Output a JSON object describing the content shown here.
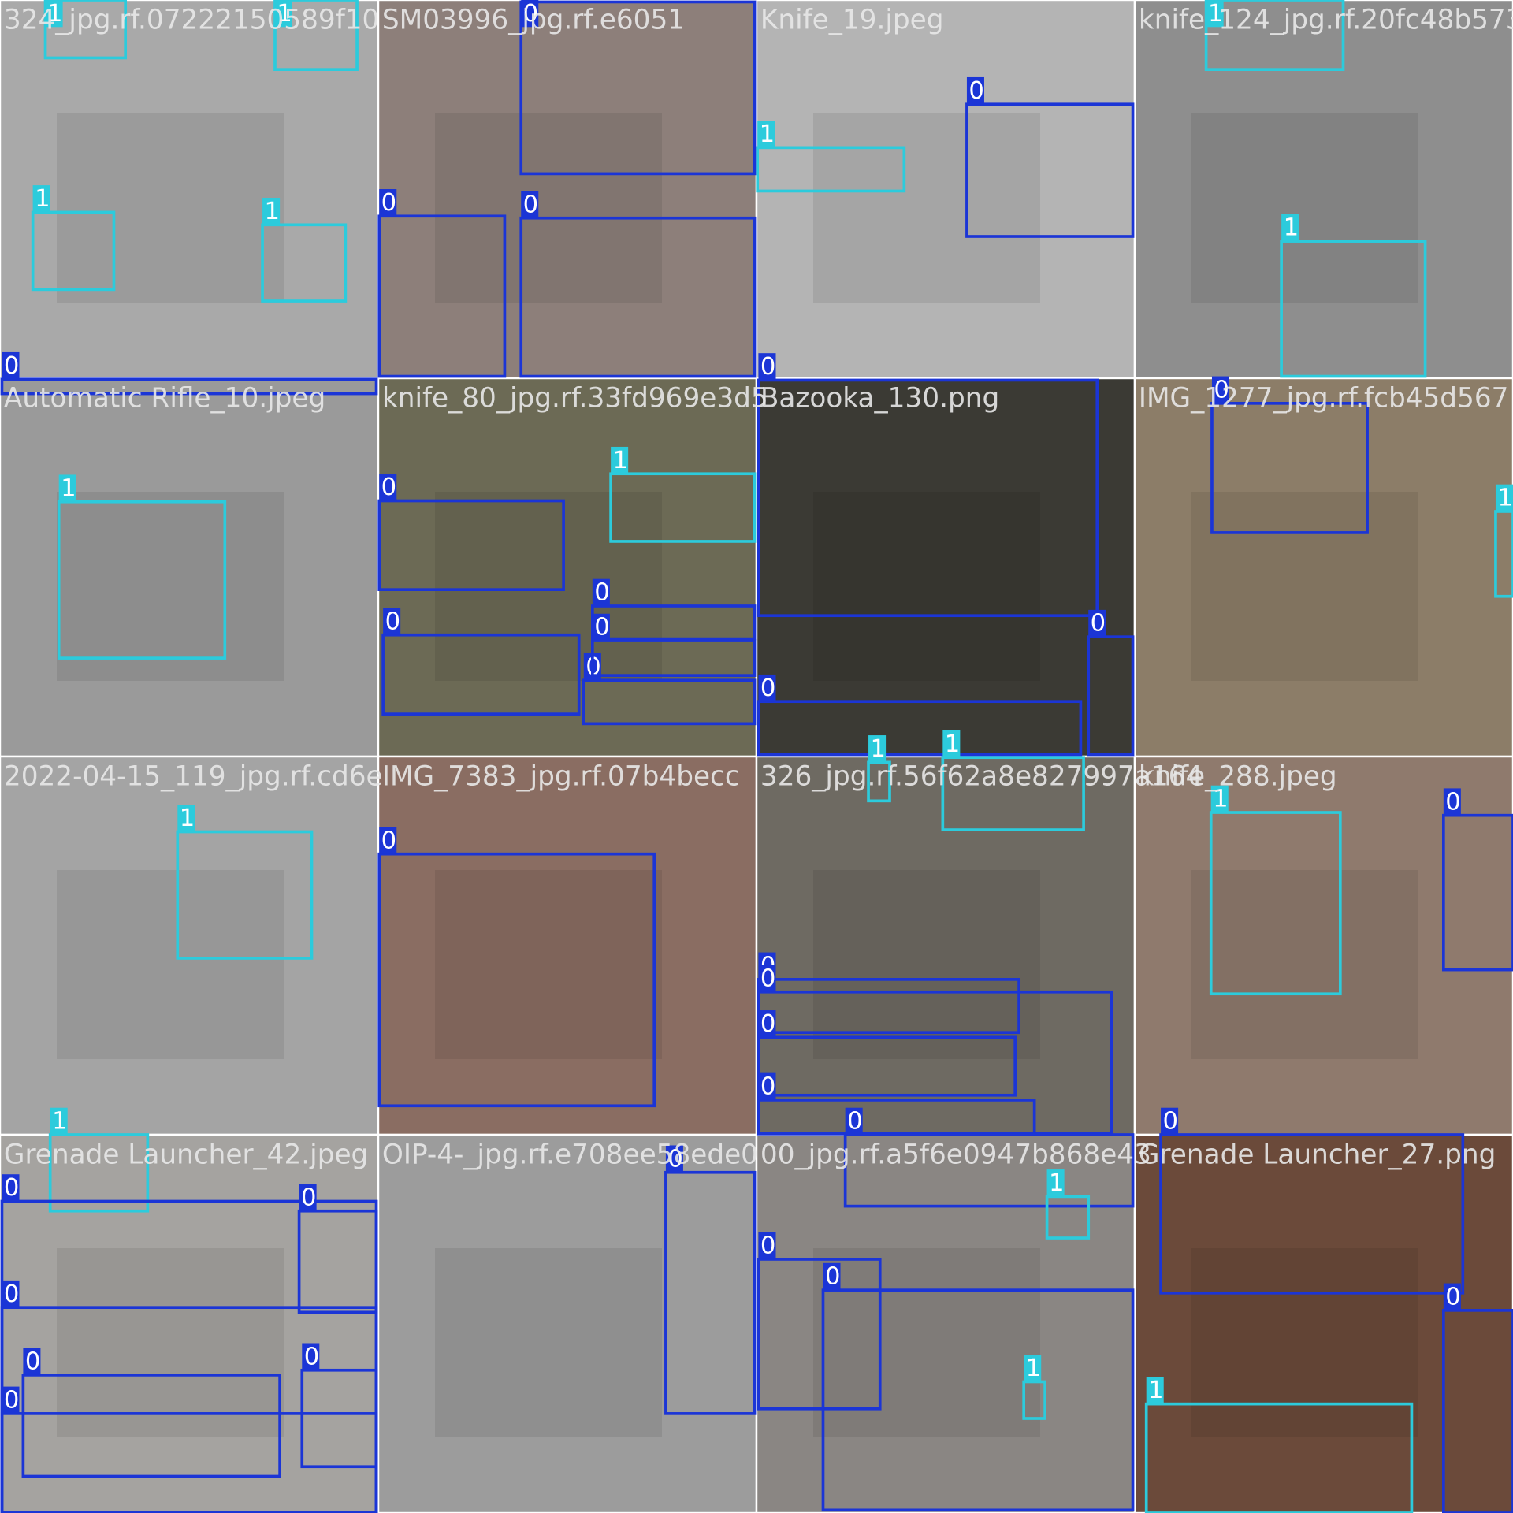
{
  "tiles": [
    {
      "filename": "324_jpg.rf.07222150589f10",
      "boxes": [
        {
          "label": "1"
        },
        {
          "label": "1"
        },
        {
          "label": "1"
        },
        {
          "label": "1"
        },
        {
          "label": "0"
        }
      ]
    },
    {
      "filename": "SM03996_jpg.rf.e6051",
      "boxes": [
        {
          "label": "0"
        },
        {
          "label": "0"
        },
        {
          "label": "0"
        }
      ]
    },
    {
      "filename": "Knife_19.jpeg",
      "boxes": [
        {
          "label": "1"
        },
        {
          "label": "0"
        }
      ]
    },
    {
      "filename": "knife_124_jpg.rf.20fc48b573",
      "boxes": [
        {
          "label": "1"
        },
        {
          "label": "1"
        }
      ]
    },
    {
      "filename": "Automatic Rifle_10.jpeg",
      "boxes": [
        {
          "label": "1"
        }
      ]
    },
    {
      "filename": "knife_80_jpg.rf.33fd969e3d5",
      "boxes": [
        {
          "label": "0"
        },
        {
          "label": "1"
        },
        {
          "label": "0"
        },
        {
          "label": "0"
        },
        {
          "label": "0"
        },
        {
          "label": "0"
        }
      ]
    },
    {
      "filename": "Bazooka_130.png",
      "boxes": [
        {
          "label": "0"
        },
        {
          "label": "0"
        },
        {
          "label": "0"
        }
      ]
    },
    {
      "filename": "IMG_1277_jpg.rf.fcb45d567",
      "boxes": [
        {
          "label": "0"
        },
        {
          "label": "1"
        }
      ]
    },
    {
      "filename": "2022-04-15_119_jpg.rf.cd6e",
      "boxes": [
        {
          "label": "1"
        }
      ]
    },
    {
      "filename": "IMG_7383_jpg.rf.07b4becc",
      "boxes": [
        {
          "label": "0"
        }
      ]
    },
    {
      "filename": "326_jpg.rf.56f62a8e827997a164",
      "boxes": [
        {
          "label": "1"
        },
        {
          "label": "1"
        },
        {
          "label": "0"
        },
        {
          "label": "0"
        },
        {
          "label": "0"
        },
        {
          "label": "0"
        }
      ]
    },
    {
      "filename": "knife_288.jpeg",
      "boxes": [
        {
          "label": "1"
        },
        {
          "label": "0"
        }
      ]
    },
    {
      "filename": "Grenade Launcher_42.jpeg",
      "boxes": [
        {
          "label": "1"
        },
        {
          "label": "0"
        },
        {
          "label": "0"
        },
        {
          "label": "0"
        },
        {
          "label": "0"
        },
        {
          "label": "0"
        },
        {
          "label": "0"
        }
      ]
    },
    {
      "filename": "OIP-4-_jpg.rf.e708ee58ede0",
      "boxes": [
        {
          "label": "0"
        }
      ]
    },
    {
      "filename": "00_jpg.rf.a5f6e0947b868e43",
      "boxes": [
        {
          "label": "0"
        },
        {
          "label": "1"
        },
        {
          "label": "0"
        },
        {
          "label": "0"
        },
        {
          "label": "1"
        }
      ]
    },
    {
      "filename": "Grenade Launcher_27.png",
      "boxes": [
        {
          "label": "0"
        },
        {
          "label": "0"
        },
        {
          "label": "1"
        }
      ]
    }
  ]
}
